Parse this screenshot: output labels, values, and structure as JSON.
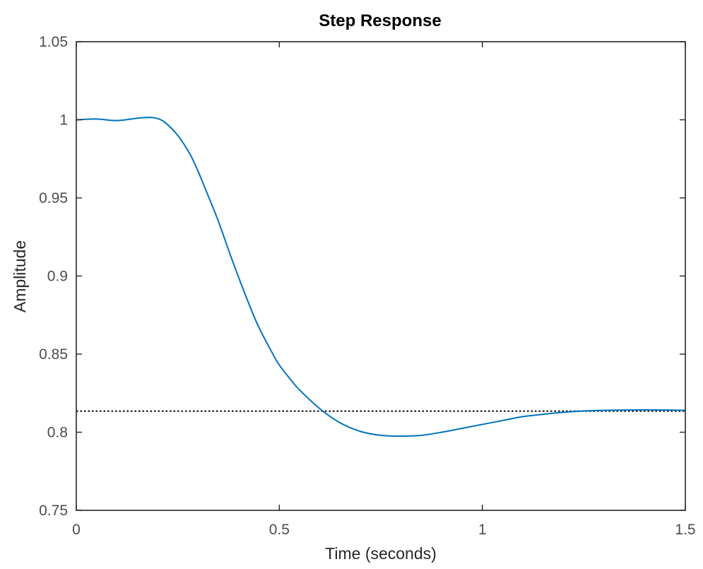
{
  "chart_data": {
    "type": "line",
    "title": "Step Response",
    "xlabel": "Time (seconds)",
    "ylabel": "Amplitude",
    "xlim": [
      0,
      1.5
    ],
    "ylim": [
      0.75,
      1.05
    ],
    "x_ticks": [
      0,
      0.5,
      1,
      1.5
    ],
    "x_tick_labels": [
      "0",
      "0.5",
      "1",
      "1.5"
    ],
    "y_ticks": [
      0.75,
      0.8,
      0.85,
      0.9,
      0.95,
      1,
      1.05
    ],
    "y_tick_labels": [
      "0.75",
      "0.8",
      "0.85",
      "0.9",
      "0.95",
      "1",
      "1.05"
    ],
    "grid": false,
    "legend": "none",
    "series": [
      {
        "color": "#0072bd",
        "style": "solid",
        "x": [
          0,
          0.05,
          0.1,
          0.15,
          0.18,
          0.2,
          0.22,
          0.25,
          0.28,
          0.3,
          0.33,
          0.35,
          0.38,
          0.4,
          0.43,
          0.45,
          0.48,
          0.5,
          0.53,
          0.55,
          0.6,
          0.65,
          0.7,
          0.75,
          0.8,
          0.85,
          0.9,
          0.95,
          1.0,
          1.05,
          1.1,
          1.15,
          1.2,
          1.25,
          1.3,
          1.35,
          1.4,
          1.45,
          1.5
        ],
        "y": [
          1.0,
          1.0005,
          0.9995,
          1.001,
          1.0015,
          1.0008,
          0.998,
          0.99,
          0.978,
          0.967,
          0.948,
          0.935,
          0.913,
          0.899,
          0.879,
          0.867,
          0.852,
          0.843,
          0.833,
          0.827,
          0.815,
          0.806,
          0.8005,
          0.798,
          0.7975,
          0.798,
          0.8,
          0.8025,
          0.805,
          0.8075,
          0.81,
          0.8115,
          0.8128,
          0.8136,
          0.814,
          0.8142,
          0.8143,
          0.8142,
          0.814
        ]
      },
      {
        "color": "#000000",
        "style": "dotted",
        "x": [
          0,
          1.5
        ],
        "y": [
          0.8135,
          0.8135
        ]
      }
    ]
  }
}
